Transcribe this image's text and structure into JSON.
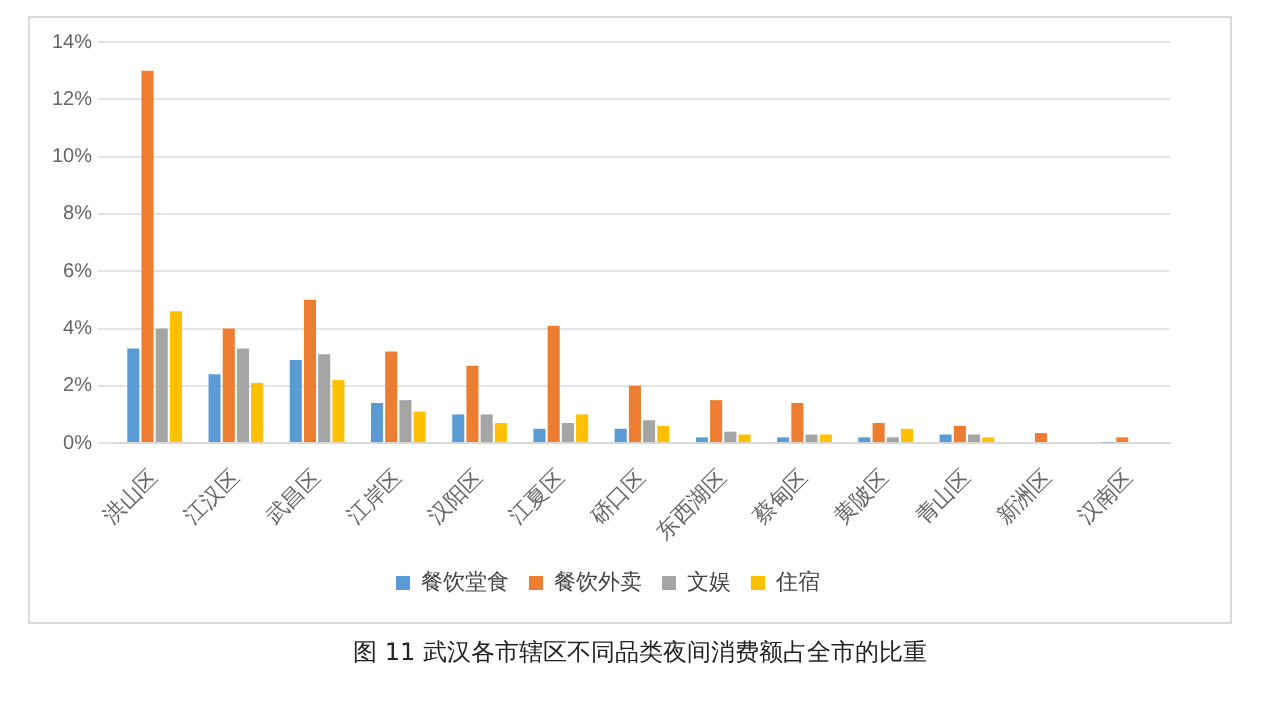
{
  "chart_data": {
    "type": "bar",
    "categories": [
      "洪山区",
      "江汉区",
      "武昌区",
      "江岸区",
      "汉阳区",
      "江夏区",
      "硚口区",
      "东西湖区",
      "蔡甸区",
      "黄陂区",
      "青山区",
      "新洲区",
      "汉南区"
    ],
    "series": [
      {
        "name": "餐饮堂食",
        "color": "#5b9bd5",
        "values": [
          3.3,
          2.4,
          2.9,
          1.4,
          1.0,
          0.5,
          0.5,
          0.2,
          0.2,
          0.2,
          0.3,
          null,
          0.02
        ]
      },
      {
        "name": "餐饮外卖",
        "color": "#ed7d31",
        "values": [
          13.0,
          4.0,
          5.0,
          3.2,
          2.7,
          4.1,
          2.0,
          1.5,
          1.4,
          0.7,
          0.6,
          0.35,
          0.2
        ]
      },
      {
        "name": "文娱",
        "color": "#a5a5a5",
        "values": [
          4.0,
          3.3,
          3.1,
          1.5,
          1.0,
          0.7,
          0.8,
          0.4,
          0.3,
          0.2,
          0.3,
          null,
          null
        ]
      },
      {
        "name": "住宿",
        "color": "#ffc000",
        "values": [
          4.6,
          2.1,
          2.2,
          1.1,
          0.7,
          1.0,
          0.6,
          0.3,
          0.3,
          0.5,
          0.2,
          null,
          0
        ]
      }
    ],
    "ylim": [
      0,
      14
    ],
    "yticks": [
      {
        "value": 0,
        "label": "0%"
      },
      {
        "value": 2,
        "label": "2%"
      },
      {
        "value": 4,
        "label": "4%"
      },
      {
        "value": 6,
        "label": "6%"
      },
      {
        "value": 8,
        "label": "8%"
      },
      {
        "value": 10,
        "label": "10%"
      },
      {
        "value": 12,
        "label": "12%"
      },
      {
        "value": 14,
        "label": "14%"
      }
    ],
    "grid": "y",
    "legend": "bottom",
    "annotations": [
      "图 11  武汉各市辖区不同品类夜间消费额占全市的比重"
    ]
  }
}
